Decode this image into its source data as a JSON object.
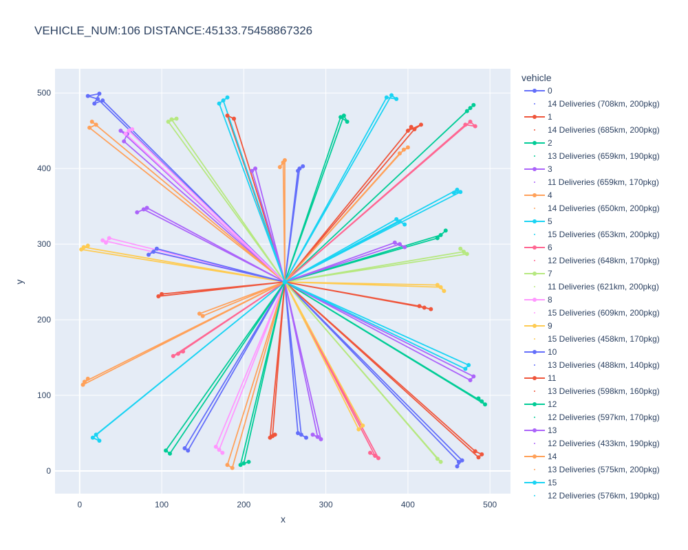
{
  "chart_data": {
    "type": "line",
    "title": "VEHICLE_NUM:106 DISTANCE:45133.75458867326",
    "xlabel": "x",
    "ylabel": "y",
    "xlim": [
      -30,
      525
    ],
    "ylim": [
      -30,
      532
    ],
    "xticks": [
      0,
      100,
      200,
      300,
      400,
      500
    ],
    "yticks": [
      0,
      100,
      200,
      300,
      400,
      500
    ],
    "legend_title": "vehicle",
    "legend_placement": "right",
    "depot": [
      250,
      250
    ],
    "series": [
      {
        "name": "0",
        "color": "#636efa",
        "annotation": "14 Deliveries (708km, 200pkg)",
        "routes": [
          [
            [
              22,
              492
            ],
            [
              10,
              496
            ],
            [
              24,
              499
            ],
            [
              18,
              486
            ],
            [
              28,
              490
            ]
          ],
          [
            [
              268,
              400
            ],
            [
              272,
              403
            ],
            [
              266,
              397
            ]
          ],
          [
            [
              462,
              12
            ],
            [
              460,
              6
            ],
            [
              466,
              14
            ]
          ]
        ]
      },
      {
        "name": "1",
        "color": "#EF553B",
        "annotation": "14 Deliveries (685km, 200pkg)",
        "routes": [
          [
            [
              408,
              452
            ],
            [
              416,
              458
            ],
            [
              400,
              450
            ],
            [
              404,
              455
            ]
          ],
          [
            [
              482,
              26
            ],
            [
              490,
              22
            ],
            [
              486,
              18
            ]
          ],
          [
            [
              180,
              470
            ],
            [
              188,
              466
            ]
          ]
        ]
      },
      {
        "name": "2",
        "color": "#00cc96",
        "annotation": "13 Deliveries (659km, 190pkg)",
        "routes": [
          [
            [
              476,
              480
            ],
            [
              480,
              484
            ],
            [
              472,
              476
            ]
          ],
          [
            [
              322,
              470
            ],
            [
              326,
              462
            ],
            [
              318,
              468
            ]
          ],
          [
            [
              490,
              92
            ],
            [
              486,
              96
            ],
            [
              494,
              88
            ]
          ]
        ]
      },
      {
        "name": "3",
        "color": "#ab63fa",
        "annotation": "11 Deliveries (659km, 170pkg)",
        "routes": [
          [
            [
              78,
              346
            ],
            [
              70,
              342
            ],
            [
              82,
              348
            ]
          ],
          [
            [
              50,
              450
            ],
            [
              58,
              446
            ],
            [
              54,
              436
            ]
          ],
          [
            [
              480,
              125
            ],
            [
              476,
              120
            ]
          ]
        ]
      },
      {
        "name": "4",
        "color": "#FFA15A",
        "annotation": "14 Deliveries (650km, 200pkg)",
        "routes": [
          [
            [
              15,
              462
            ],
            [
              20,
              458
            ],
            [
              12,
              454
            ]
          ],
          [
            [
              248,
              408
            ],
            [
              244,
              402
            ],
            [
              250,
              411
            ]
          ],
          [
            [
              180,
              8
            ],
            [
              186,
              4
            ]
          ]
        ]
      },
      {
        "name": "5",
        "color": "#19d3f3",
        "annotation": "15 Deliveries (653km, 200pkg)",
        "routes": [
          [
            [
              380,
              497
            ],
            [
              386,
              492
            ],
            [
              374,
              494
            ]
          ],
          [
            [
              460,
              372
            ],
            [
              456,
              368
            ],
            [
              464,
              369
            ]
          ],
          [
            [
              20,
              48
            ],
            [
              24,
              40
            ],
            [
              16,
              44
            ]
          ]
        ]
      },
      {
        "name": "6",
        "color": "#FF6692",
        "annotation": "12 Deliveries (648km, 170pkg)",
        "routes": [
          [
            [
              476,
              462
            ],
            [
              482,
              456
            ],
            [
              470,
              458
            ]
          ],
          [
            [
              120,
              155
            ],
            [
              126,
              158
            ],
            [
              114,
              152
            ]
          ],
          [
            [
              360,
              20
            ],
            [
              354,
              24
            ],
            [
              364,
              17
            ]
          ]
        ]
      },
      {
        "name": "7",
        "color": "#B6E880",
        "annotation": "11 Deliveries (621km, 200pkg)",
        "routes": [
          [
            [
              112,
              465
            ],
            [
              118,
              466
            ],
            [
              108,
              462
            ]
          ],
          [
            [
              468,
              290
            ],
            [
              464,
              294
            ],
            [
              472,
              287
            ]
          ],
          [
            [
              440,
              12
            ],
            [
              436,
              16
            ]
          ]
        ]
      },
      {
        "name": "8",
        "color": "#FF97FF",
        "annotation": "15 Deliveries (609km, 200pkg)",
        "routes": [
          [
            [
              60,
              450
            ],
            [
              64,
              452
            ],
            [
              56,
              446
            ]
          ],
          [
            [
              28,
              305
            ],
            [
              32,
              302
            ],
            [
              36,
              308
            ]
          ],
          [
            [
              170,
              28
            ],
            [
              174,
              24
            ],
            [
              166,
              32
            ]
          ]
        ]
      },
      {
        "name": "9",
        "color": "#FECB52",
        "annotation": "15 Deliveries (458km, 170pkg)",
        "routes": [
          [
            [
              5,
              296
            ],
            [
              10,
              298
            ],
            [
              2,
              293
            ]
          ],
          [
            [
              440,
              243
            ],
            [
              444,
              238
            ],
            [
              436,
              246
            ]
          ],
          [
            [
              345,
              60
            ],
            [
              340,
              55
            ]
          ]
        ]
      },
      {
        "name": "10",
        "color": "#636efa",
        "annotation": "13 Deliveries (488km, 140pkg)",
        "routes": [
          [
            [
              270,
              48
            ],
            [
              276,
              44
            ],
            [
              266,
              50
            ]
          ],
          [
            [
              90,
              290
            ],
            [
              84,
              286
            ],
            [
              94,
              294
            ]
          ],
          [
            [
              128,
              30
            ],
            [
              132,
              27
            ]
          ]
        ]
      },
      {
        "name": "11",
        "color": "#EF553B",
        "annotation": "13 Deliveries (598km, 160pkg)",
        "routes": [
          [
            [
              235,
              46
            ],
            [
              238,
              48
            ],
            [
              232,
              44
            ]
          ],
          [
            [
              420,
              216
            ],
            [
              428,
              214
            ],
            [
              414,
              218
            ]
          ],
          [
            [
              100,
              234
            ],
            [
              96,
              231
            ]
          ]
        ]
      },
      {
        "name": "12",
        "color": "#00cc96",
        "annotation": "12 Deliveries (597km, 170pkg)",
        "routes": [
          [
            [
              200,
              10
            ],
            [
              206,
              12
            ],
            [
              196,
              8
            ]
          ],
          [
            [
              440,
              312
            ],
            [
              446,
              318
            ],
            [
              436,
              308
            ]
          ],
          [
            [
              105,
              27
            ],
            [
              110,
              23
            ]
          ]
        ]
      },
      {
        "name": "13",
        "color": "#ab63fa",
        "annotation": "12 Deliveries (433km, 190pkg)",
        "routes": [
          [
            [
              290,
              45
            ],
            [
              284,
              48
            ],
            [
              294,
              42
            ]
          ],
          [
            [
              390,
              300
            ],
            [
              396,
              296
            ],
            [
              384,
              302
            ]
          ],
          [
            [
              210,
              397
            ],
            [
              214,
              400
            ]
          ]
        ]
      },
      {
        "name": "14",
        "color": "#FFA15A",
        "annotation": "13 Deliveries (575km, 200pkg)",
        "routes": [
          [
            [
              6,
              118
            ],
            [
              10,
              122
            ],
            [
              4,
              114
            ]
          ],
          [
            [
              395,
              425
            ],
            [
              400,
              428
            ],
            [
              390,
              420
            ]
          ],
          [
            [
              150,
              205
            ],
            [
              146,
              208
            ]
          ]
        ]
      },
      {
        "name": "15",
        "color": "#19d3f3",
        "annotation": "12 Deliveries (576km, 190pkg)",
        "routes": [
          [
            [
              175,
              490
            ],
            [
              180,
              494
            ],
            [
              170,
              486
            ]
          ],
          [
            [
              390,
              330
            ],
            [
              396,
              326
            ],
            [
              386,
              333
            ]
          ],
          [
            [
              470,
              135
            ],
            [
              474,
              140
            ]
          ]
        ]
      }
    ]
  }
}
